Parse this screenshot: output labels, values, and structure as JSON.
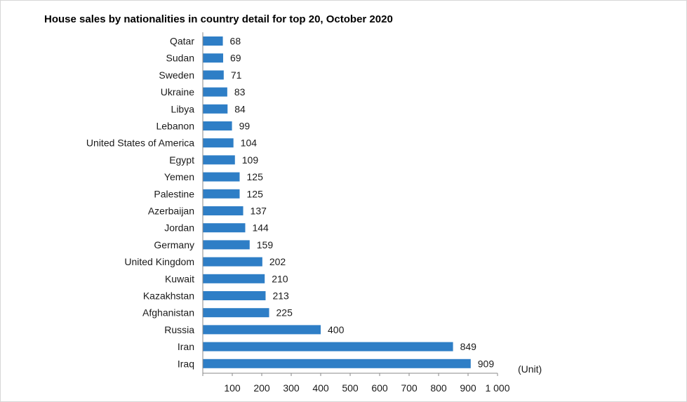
{
  "chart_data": {
    "type": "bar",
    "orientation": "horizontal",
    "title": "House sales by nationalities in country detail for top 20, October 2020",
    "unit_label": "(Unit)",
    "categories": [
      "Qatar",
      "Sudan",
      "Sweden",
      "Ukraine",
      "Libya",
      "Lebanon",
      "United States of America",
      "Egypt",
      "Yemen",
      "Palestine",
      "Azerbaijan",
      "Jordan",
      "Germany",
      "United Kingdom",
      "Kuwait",
      "Kazakhstan",
      "Afghanistan",
      "Russia",
      "Iran",
      "Iraq"
    ],
    "values": [
      68,
      69,
      71,
      83,
      84,
      99,
      104,
      109,
      125,
      125,
      137,
      144,
      159,
      202,
      210,
      213,
      225,
      400,
      849,
      909
    ],
    "xlim": [
      0,
      1000
    ],
    "x_ticks": [
      100,
      200,
      300,
      400,
      500,
      600,
      700,
      800,
      900,
      1000
    ],
    "x_tick_labels": [
      "100",
      "200",
      "300",
      "400",
      "500",
      "600",
      "700",
      "800",
      "900",
      "1 000"
    ],
    "grid": false,
    "bar_color": "#2e7ec6"
  }
}
